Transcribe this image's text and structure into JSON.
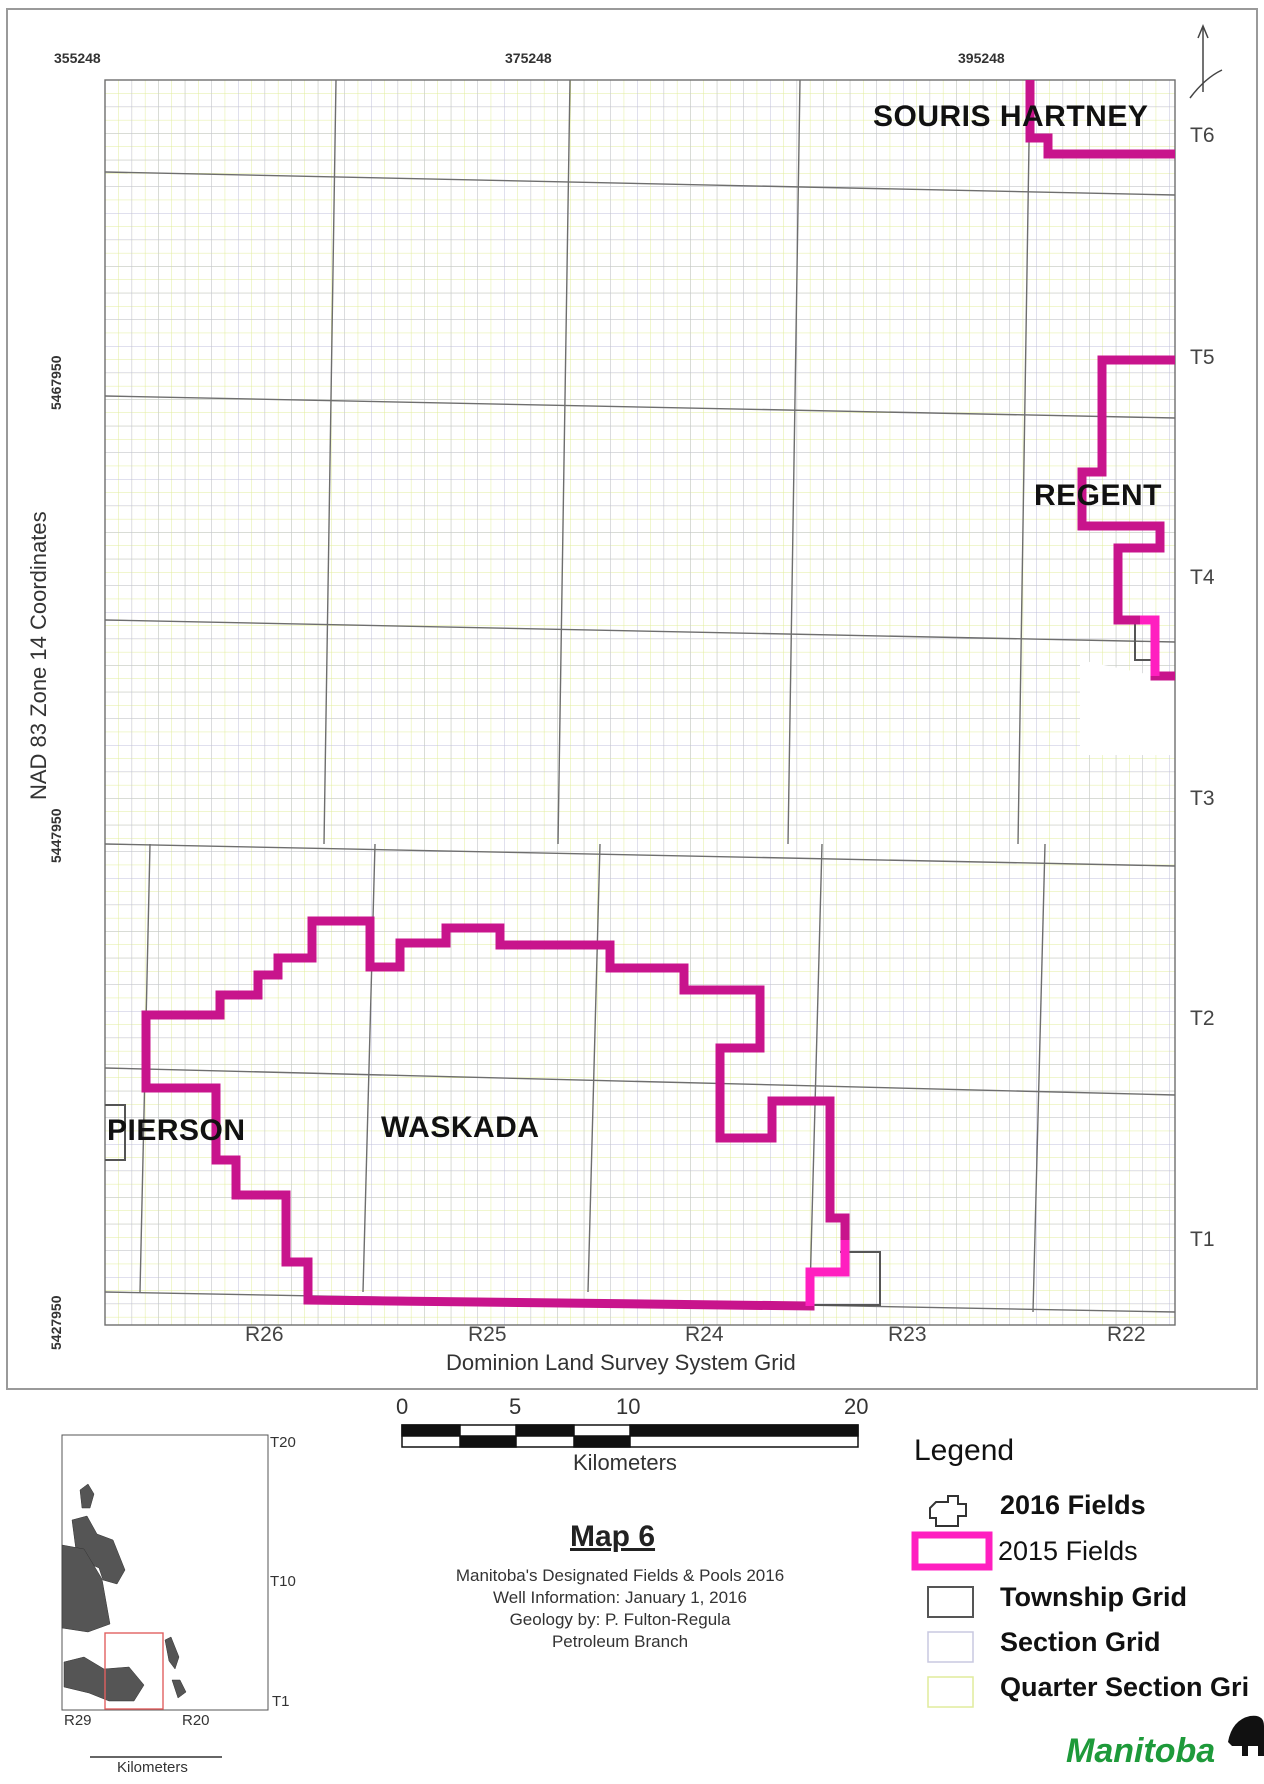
{
  "map": {
    "top_coords": [
      "355248",
      "375248",
      "395248"
    ],
    "left_coords": [
      "5467950",
      "5447950",
      "5427950"
    ],
    "y_axis_label": "NAD 83 Zone 14 Coordinates",
    "x_axis_label": "Dominion Land Survey System Grid",
    "townships": [
      "T6",
      "T5",
      "T4",
      "T3",
      "T2",
      "T1"
    ],
    "ranges": [
      "R26",
      "R25",
      "R24",
      "R23",
      "R22"
    ],
    "fields": {
      "souris_hartney": "SOURIS HARTNEY",
      "regent": "REGENT",
      "pierson": "PIERSON",
      "waskada": "WASKADA"
    },
    "colors": {
      "field_2015": "#c8148c",
      "field_2015_bright": "#ff1fc0",
      "field_2016": "#555555",
      "township": "#6e6e6e",
      "section": "#b9b9d6",
      "quarter": "#e6f0a8"
    },
    "north_arrow_icon": "north-arrow-icon"
  },
  "scale": {
    "ticks": [
      "0",
      "5",
      "10",
      "20"
    ],
    "unit": "Kilometers"
  },
  "legend": {
    "title": "Legend",
    "items": {
      "fields_2016": "2016 Fields",
      "fields_2015": "2015 Fields",
      "township_grid": "Township Grid",
      "section_grid": "Section Grid",
      "quarter_section_grid": "Quarter Section Gri"
    }
  },
  "title_block": {
    "title": "Map 6",
    "line1": "Manitoba's Designated Fields & Pools 2016",
    "line2": "Well Information: January 1, 2016",
    "line3": "Geology by: P. Fulton-Regula",
    "line4": "Petroleum Branch"
  },
  "inset": {
    "townships": [
      "T20",
      "T10",
      "T1"
    ],
    "ranges": [
      "R29",
      "R20"
    ],
    "scale_unit": "Kilometers"
  },
  "logo": "Manitoba"
}
